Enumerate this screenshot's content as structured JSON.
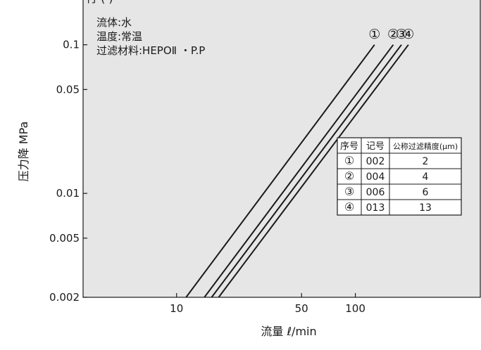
{
  "colors": {
    "plot_bg": "#e6e6e6",
    "frame": "#1a1a1a",
    "line": "#1a1a1a",
    "table_bg": "#ffffff"
  },
  "chart_data": {
    "type": "line",
    "top_clipped_text": "行  (   )",
    "xlabel": "流量 ℓ/min",
    "ylabel": "压力降 MPa",
    "x_scale": "log",
    "y_scale": "log",
    "xlim": [
      3,
      500
    ],
    "ylim": [
      0.002,
      0.2
    ],
    "x_ticks": [
      10,
      50,
      100
    ],
    "x_tick_labels": [
      "10",
      "50",
      "100"
    ],
    "y_ticks": [
      0.1,
      0.05,
      0.01,
      0.005,
      0.002
    ],
    "y_tick_labels": [
      "0.1",
      "0.05",
      "0.01",
      "0.005",
      "0.002"
    ],
    "grid": false,
    "annotations": [
      "流体:水",
      "温度:常温",
      "过滤材料:HEPOⅡ ・P.P"
    ],
    "series": [
      {
        "name": "①",
        "x": [
          11.3,
          128
        ],
        "y": [
          0.002,
          0.1
        ]
      },
      {
        "name": "②",
        "x": [
          14.3,
          163
        ],
        "y": [
          0.002,
          0.1
        ]
      },
      {
        "name": "③",
        "x": [
          15.7,
          181
        ],
        "y": [
          0.002,
          0.1
        ]
      },
      {
        "name": "④",
        "x": [
          17.2,
          198
        ],
        "y": [
          0.002,
          0.1
        ]
      }
    ],
    "table": {
      "headers": [
        "序号",
        "记号",
        "公称过滤精度(μm)"
      ],
      "rows": [
        [
          "①",
          "002",
          "2"
        ],
        [
          "②",
          "004",
          "4"
        ],
        [
          "③",
          "006",
          "6"
        ],
        [
          "④",
          "013",
          "13"
        ]
      ]
    }
  }
}
